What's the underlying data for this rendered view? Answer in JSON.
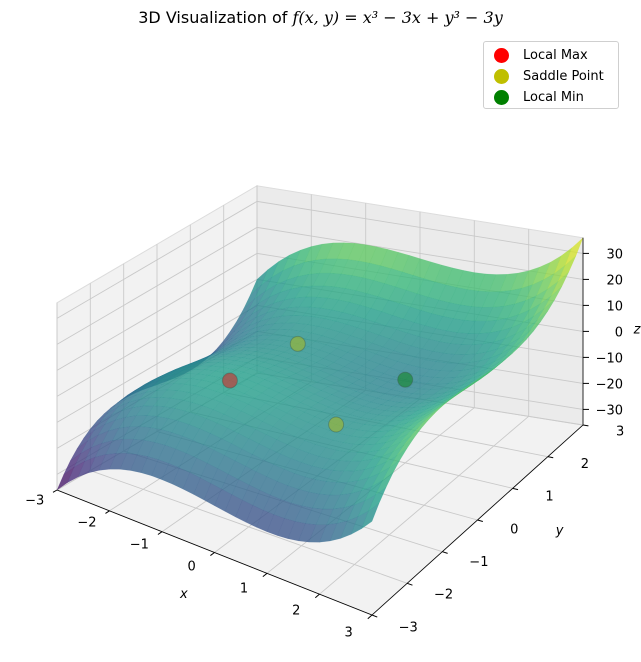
{
  "chart_data": {
    "type": "surface",
    "title_prefix": "3D Visualization of ",
    "title_formula": "f(x, y) = x³ − 3x + y³ − 3y",
    "xlabel": "x",
    "ylabel": "y",
    "zlabel": "z",
    "xlim": [
      -3,
      3
    ],
    "ylim": [
      -3,
      3
    ],
    "zlim": [
      -36,
      36
    ],
    "x_ticks": [
      -3,
      -2,
      -1,
      0,
      1,
      2,
      3
    ],
    "y_ticks": [
      -3,
      -2,
      -1,
      0,
      1,
      2,
      3
    ],
    "z_ticks": [
      -30,
      -20,
      -10,
      0,
      10,
      20,
      30
    ],
    "x_tick_labels": [
      "−3",
      "−2",
      "−1",
      "0",
      "1",
      "2",
      "3"
    ],
    "y_tick_labels": [
      "−3",
      "−2",
      "−1",
      "0",
      "1",
      "2",
      "3"
    ],
    "z_tick_labels": [
      "−30",
      "−20",
      "−10",
      "0",
      "10",
      "20",
      "30"
    ],
    "colormap": "viridis",
    "grid": true,
    "legend_position": "top-right",
    "critical_points": [
      {
        "name": "Local Max",
        "x": -1,
        "y": -1,
        "z": 4,
        "color": "#ff0000"
      },
      {
        "name": "Saddle Point",
        "x": -1,
        "y": 1,
        "z": 0,
        "color": "#bfbf00"
      },
      {
        "name": "Saddle Point",
        "x": 1,
        "y": -1,
        "z": 0,
        "color": "#bfbf00"
      },
      {
        "name": "Local Min",
        "x": 1,
        "y": 1,
        "z": -4,
        "color": "#008000"
      }
    ],
    "legend": [
      {
        "label": "Local Max",
        "color": "#ff0000"
      },
      {
        "label": "Saddle Point",
        "color": "#bfbf00"
      },
      {
        "label": "Local Min",
        "color": "#008000"
      }
    ]
  }
}
